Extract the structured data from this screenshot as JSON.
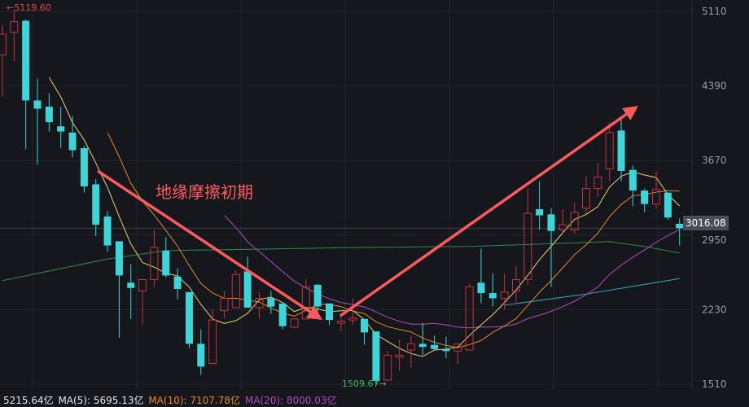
{
  "chart_data": {
    "type": "candlestick",
    "title": "",
    "ylim": [
      1510,
      5110
    ],
    "yticks": [
      "5110",
      "4390",
      "3670",
      "2950",
      "2230",
      "1510"
    ],
    "grid": true,
    "colors": {
      "up": "#c8323c",
      "down": "#3fd5d8",
      "ma5": "#e8d27a",
      "ma10": "#e0892e",
      "ma20": "#b04cc0",
      "long_green": "#2f8a4e",
      "long_teal": "#3aa3b8",
      "arrow": "#ff5a5f"
    },
    "ohlc": [
      [
        4690,
        4890,
        4980,
        4280
      ],
      [
        4910,
        5010,
        5119.6,
        4630
      ],
      [
        5020,
        4250,
        5030,
        3780
      ],
      [
        4250,
        4170,
        4460,
        3630
      ],
      [
        4190,
        4040,
        4320,
        3950
      ],
      [
        4000,
        3950,
        4190,
        3790
      ],
      [
        3940,
        3770,
        4100,
        3700
      ],
      [
        3790,
        3420,
        3810,
        3360
      ],
      [
        3440,
        3050,
        3490,
        2940
      ],
      [
        3130,
        2850,
        3180,
        2790
      ],
      [
        2890,
        2560,
        2890,
        1960
      ],
      [
        2490,
        2440,
        2670,
        2140
      ],
      [
        2410,
        2520,
        2520,
        2080
      ],
      [
        2520,
        2830,
        3000,
        2450
      ],
      [
        2800,
        2560,
        2930,
        2540
      ],
      [
        2550,
        2430,
        2630,
        2330
      ],
      [
        2400,
        1900,
        2400,
        1860
      ],
      [
        1900,
        1680,
        2040,
        1600
      ],
      [
        1710,
        2130,
        2230,
        1700
      ],
      [
        2220,
        2340,
        2410,
        2150
      ],
      [
        2250,
        2570,
        2610,
        2250
      ],
      [
        2600,
        2250,
        2740,
        2250
      ],
      [
        2250,
        2340,
        2400,
        2140
      ],
      [
        2340,
        2260,
        2410,
        2190
      ],
      [
        2290,
        2070,
        2290,
        2040
      ],
      [
        2060,
        2140,
        2150,
        2050
      ],
      [
        2140,
        2450,
        2520,
        2140
      ],
      [
        2470,
        2260,
        2480,
        2140
      ],
      [
        2290,
        2130,
        2290,
        2080
      ],
      [
        2100,
        2120,
        2190,
        2020
      ],
      [
        2130,
        2150,
        2340,
        2080
      ],
      [
        2140,
        2010,
        2140,
        1890
      ],
      [
        2020,
        1540,
        2020,
        1509.67
      ],
      [
        1550,
        1790,
        1830,
        1540
      ],
      [
        1770,
        1790,
        1940,
        1640
      ],
      [
        1840,
        1900,
        1980,
        1670
      ],
      [
        1900,
        1870,
        2100,
        1790
      ],
      [
        1890,
        1850,
        1980,
        1840
      ],
      [
        1850,
        1830,
        1970,
        1760
      ],
      [
        1830,
        1900,
        1900,
        1710
      ],
      [
        1840,
        2450,
        2480,
        1840
      ],
      [
        2490,
        2390,
        2820,
        2290
      ],
      [
        2390,
        2340,
        2580,
        2260
      ],
      [
        2340,
        2400,
        2580,
        2230
      ],
      [
        2410,
        2520,
        2650,
        2300
      ],
      [
        2520,
        3160,
        3400,
        2470
      ],
      [
        3200,
        3140,
        3470,
        3000
      ],
      [
        3150,
        2990,
        3210,
        2450
      ],
      [
        3000,
        3050,
        3200,
        2970
      ],
      [
        3000,
        3170,
        3260,
        2960
      ],
      [
        3210,
        3400,
        3520,
        3150
      ],
      [
        3400,
        3510,
        3650,
        3320
      ],
      [
        3590,
        3940,
        4040,
        3470
      ],
      [
        3960,
        3570,
        4070,
        3470
      ],
      [
        3580,
        3380,
        3620,
        3230
      ],
      [
        3380,
        3250,
        3400,
        3170
      ],
      [
        3250,
        3390,
        3570,
        3200
      ],
      [
        3360,
        3120,
        3360,
        3100
      ],
      [
        3059,
        3016.08,
        3110,
        2850
      ]
    ],
    "long_green": [
      [
        0,
        2510
      ],
      [
        9,
        2720
      ],
      [
        14,
        2800
      ],
      [
        30,
        2830
      ],
      [
        40,
        2840
      ],
      [
        52,
        2886
      ],
      [
        55,
        2840
      ],
      [
        58,
        2776
      ]
    ],
    "long_teal": [
      [
        43,
        2273
      ],
      [
        50,
        2380
      ],
      [
        58,
        2530
      ]
    ],
    "high_label": "←5119.60",
    "low_label": "1509.67→",
    "last_price": "3016.08",
    "annotation": "地缘摩擦初期",
    "volume_legend": {
      "vol": "5215.64亿",
      "ma5": "MA(5): 5695.13亿",
      "ma10": "MA(10): 7107.78亿",
      "ma20": "MA(20): 8000.03亿"
    }
  }
}
